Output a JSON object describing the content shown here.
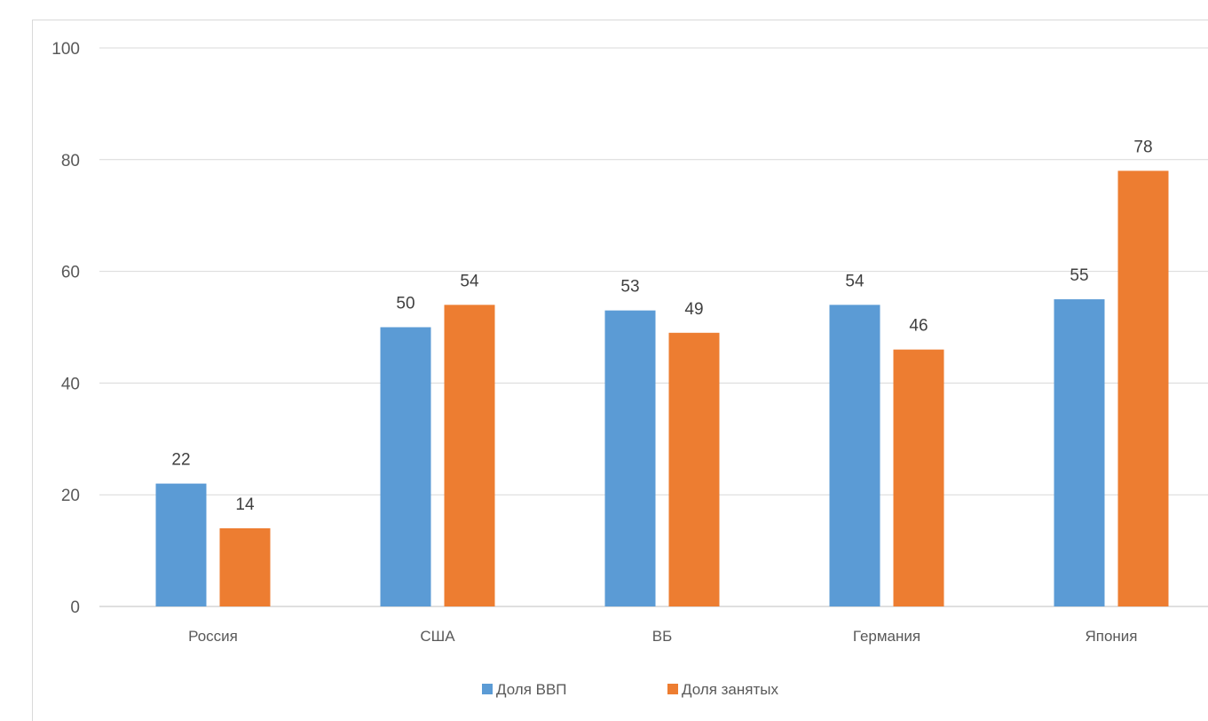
{
  "chart_data": {
    "type": "bar",
    "categories": [
      "Россия",
      "США",
      "ВБ",
      "Германия",
      "Япония"
    ],
    "series": [
      {
        "name": "Доля ВВП",
        "values": [
          22,
          50,
          53,
          54,
          55
        ],
        "color": "#5b9bd5"
      },
      {
        "name": "Доля занятых",
        "values": [
          14,
          54,
          49,
          46,
          78
        ],
        "color": "#ed7d31"
      }
    ],
    "ylim": [
      0,
      100
    ],
    "yticks": [
      0,
      20,
      40,
      60,
      80,
      100
    ],
    "grid": true,
    "legend": "bottom",
    "data_labels": true
  }
}
